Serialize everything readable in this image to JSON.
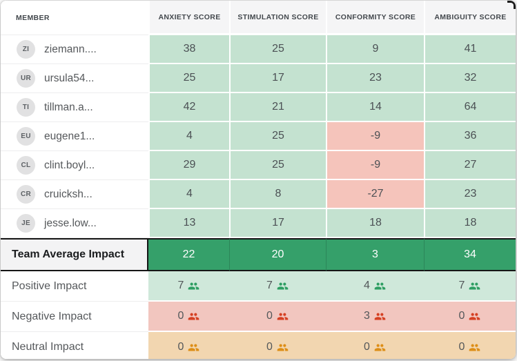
{
  "columns": [
    {
      "label": "MEMBER"
    },
    {
      "label": "ANXIETY SCORE"
    },
    {
      "label": "STIMULATION SCORE"
    },
    {
      "label": "CONFORMITY SCORE"
    },
    {
      "label": "AMBIGUITY SCORE"
    }
  ],
  "members": [
    {
      "initials": "ZI",
      "name": "ziemann....",
      "scores": [
        38,
        25,
        9,
        41
      ]
    },
    {
      "initials": "UR",
      "name": "ursula54...",
      "scores": [
        25,
        17,
        23,
        32
      ]
    },
    {
      "initials": "TI",
      "name": "tillman.a...",
      "scores": [
        42,
        21,
        14,
        64
      ]
    },
    {
      "initials": "EU",
      "name": "eugene1...",
      "scores": [
        4,
        25,
        -9,
        36
      ]
    },
    {
      "initials": "CL",
      "name": "clint.boyl...",
      "scores": [
        29,
        25,
        -9,
        27
      ]
    },
    {
      "initials": "CR",
      "name": "cruicksh...",
      "scores": [
        4,
        8,
        -27,
        23
      ]
    },
    {
      "initials": "JE",
      "name": "jesse.low...",
      "scores": [
        13,
        17,
        18,
        18
      ]
    }
  ],
  "team_average": {
    "label": "Team Average Impact",
    "values": [
      22,
      20,
      3,
      34
    ]
  },
  "impact_rows": [
    {
      "label": "Positive Impact",
      "type": "positive",
      "icon": "group-icon",
      "values": [
        7,
        7,
        4,
        7
      ]
    },
    {
      "label": "Negative Impact",
      "type": "negative",
      "icon": "group-icon",
      "values": [
        0,
        0,
        3,
        0
      ]
    },
    {
      "label": "Neutral Impact",
      "type": "neutral",
      "icon": "group-icon",
      "values": [
        0,
        0,
        0,
        0
      ]
    }
  ],
  "colors": {
    "score_cell_bg": "#c4e2d0",
    "score_cell_negative_bg": "#f5c4bb",
    "team_average_bg": "#35a06a",
    "impact_positive_bg": "#cfe8da",
    "impact_negative_bg": "#f2c6bf",
    "impact_neutral_bg": "#f2d6b0",
    "icon_positive": "#2d9e62",
    "icon_negative": "#d54023",
    "icon_neutral": "#dd8e17"
  }
}
